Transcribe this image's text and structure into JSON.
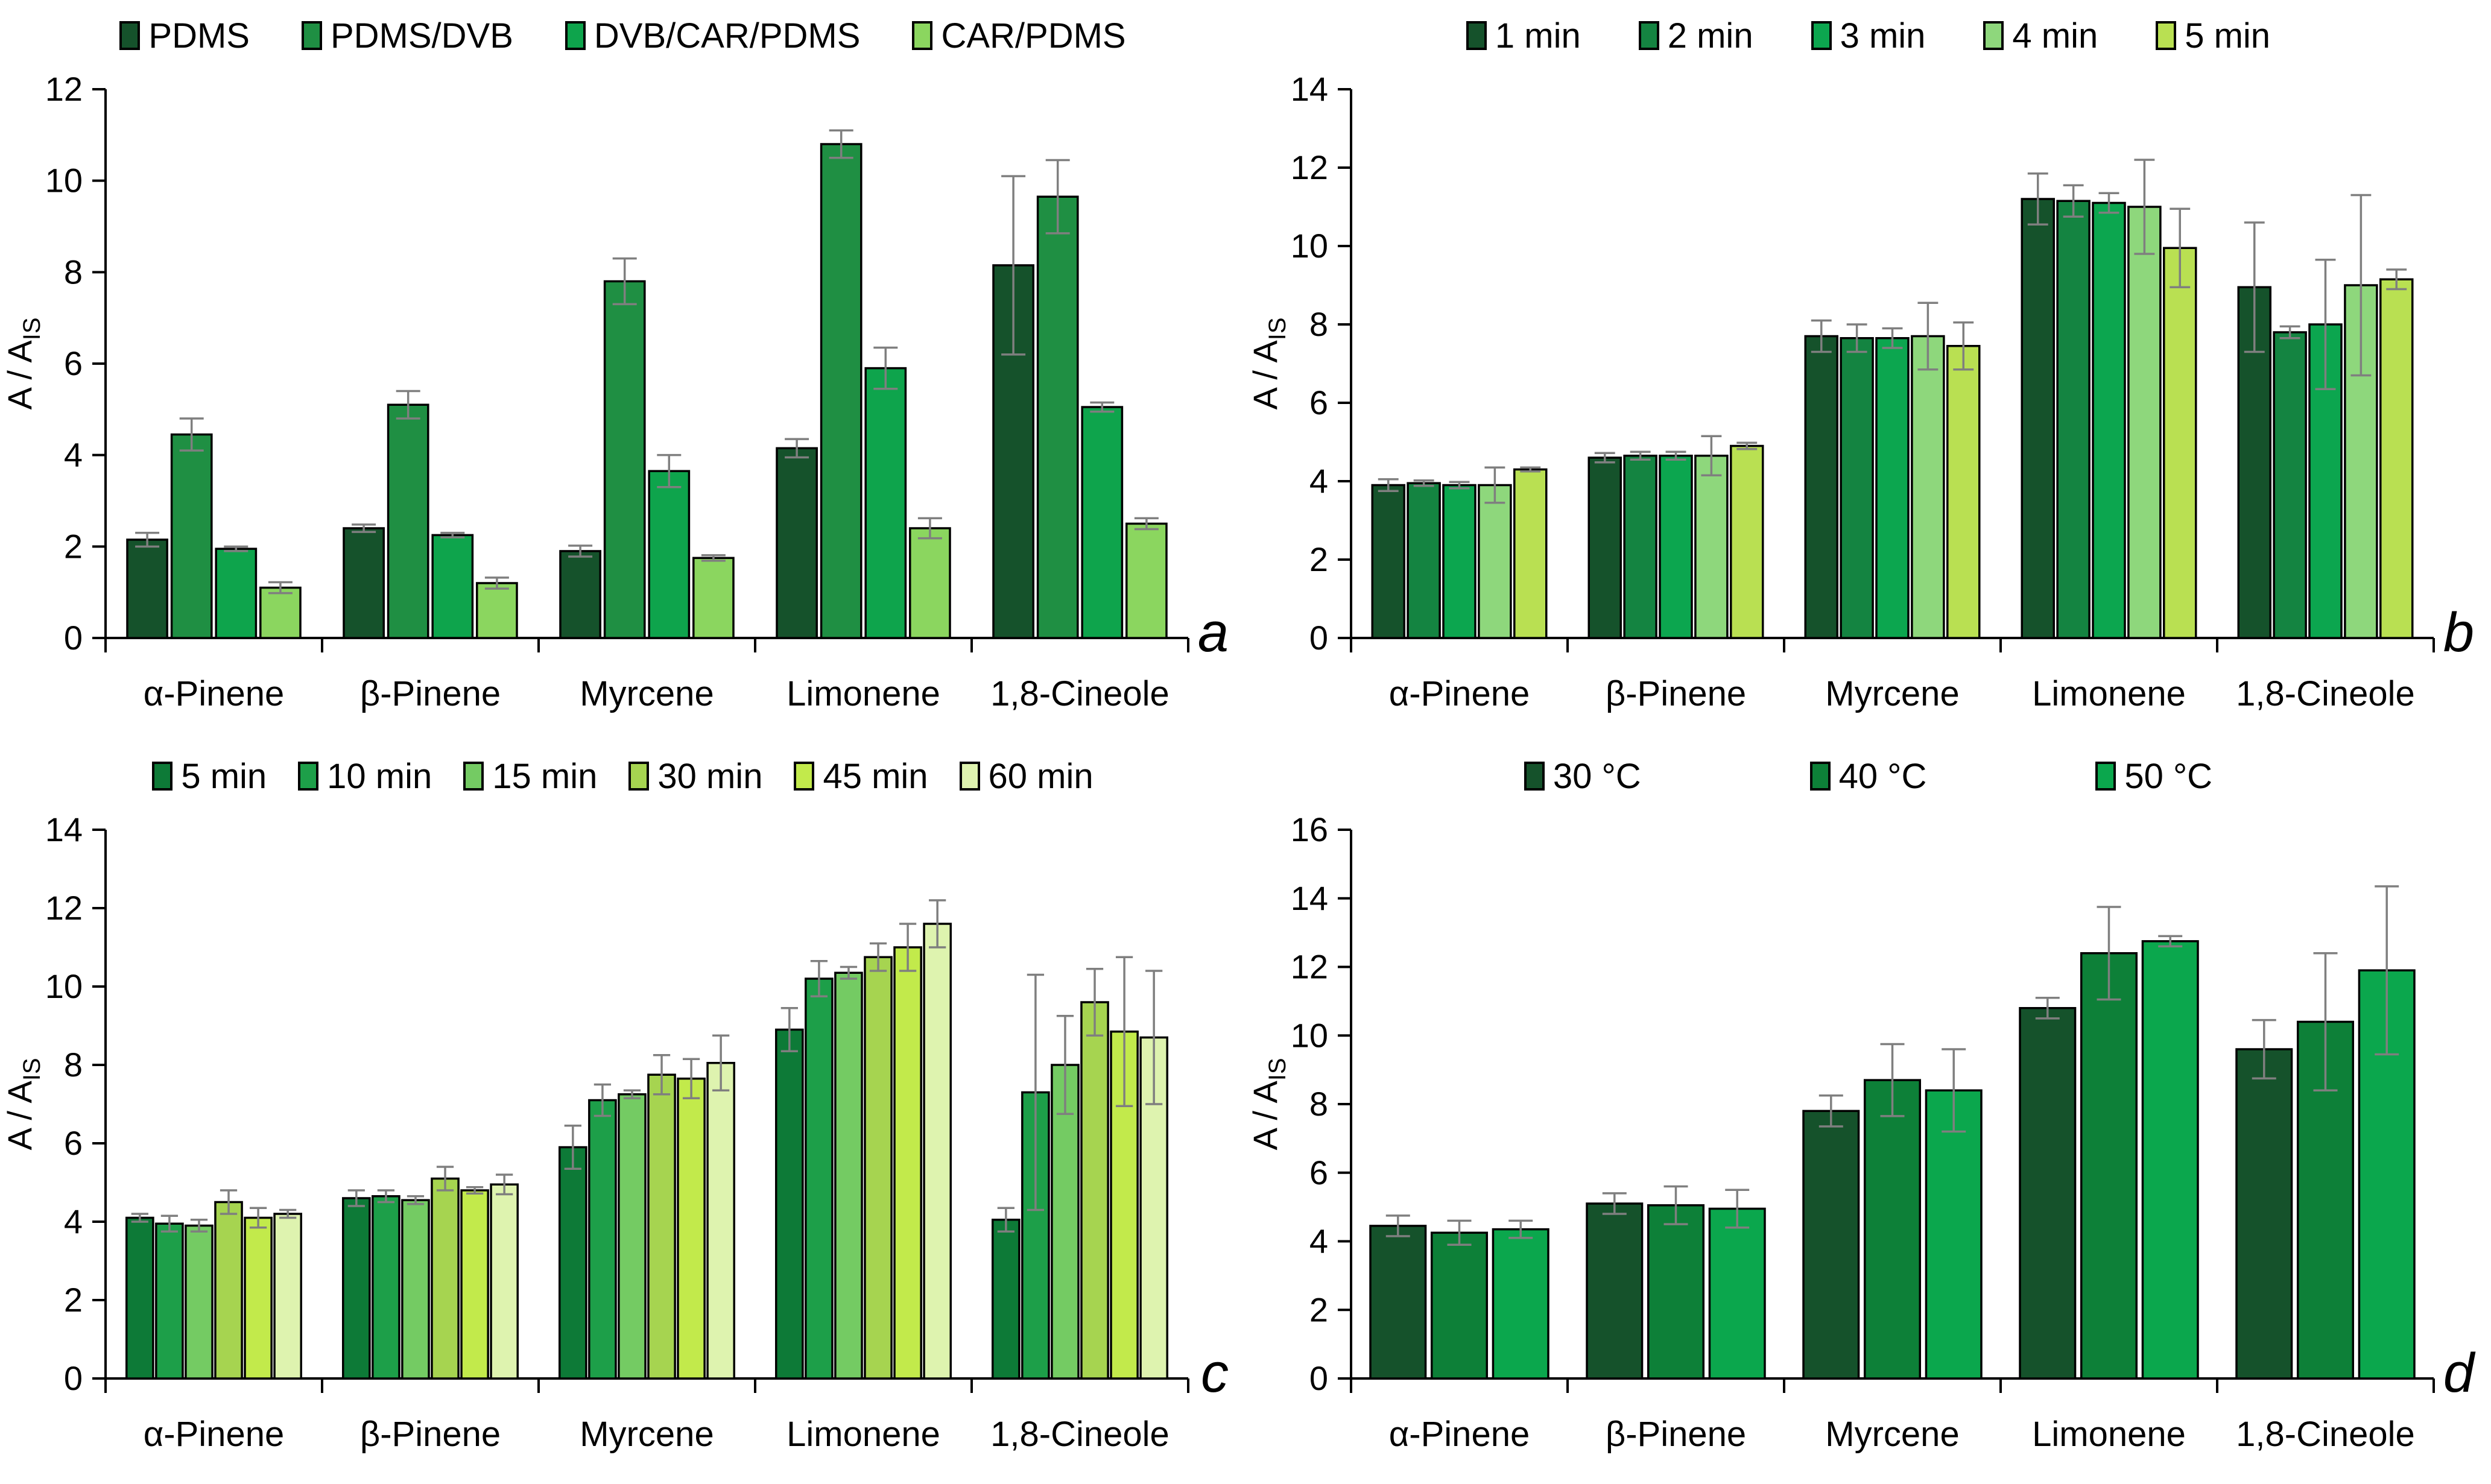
{
  "chart_data": [
    {
      "type": "bar",
      "panel_label": "a",
      "ylabel": "A / A",
      "ylabel_sub": "IS",
      "ylim": [
        0,
        12
      ],
      "ytick_step": 2,
      "grid": false,
      "legend_position": "top",
      "error_bar_color": "#7f7f7f",
      "categories": [
        "α-Pinene",
        "β-Pinene",
        "Myrcene",
        "Limonene",
        "1,8-Cineole"
      ],
      "series": [
        {
          "name": "PDMS",
          "color": "#15522b",
          "values": [
            2.15,
            2.4,
            1.9,
            4.15,
            8.15
          ],
          "errors": [
            0.15,
            0.08,
            0.12,
            0.2,
            1.95
          ]
        },
        {
          "name": "PDMS/DVB",
          "color": "#1f8f43",
          "values": [
            4.45,
            5.1,
            7.8,
            10.8,
            9.65
          ],
          "errors": [
            0.35,
            0.3,
            0.5,
            0.3,
            0.8
          ]
        },
        {
          "name": "DVB/CAR/PDMS",
          "color": "#0ea44c",
          "values": [
            1.95,
            2.25,
            3.65,
            5.9,
            5.05
          ],
          "errors": [
            0.05,
            0.05,
            0.35,
            0.45,
            0.1
          ]
        },
        {
          "name": "CAR/PDMS",
          "color": "#8bd65f",
          "values": [
            1.1,
            1.2,
            1.75,
            2.4,
            2.5
          ],
          "errors": [
            0.12,
            0.12,
            0.06,
            0.22,
            0.12
          ]
        }
      ]
    },
    {
      "type": "bar",
      "panel_label": "b",
      "ylabel": "A / A",
      "ylabel_sub": "IS",
      "ylim": [
        0,
        14
      ],
      "ytick_step": 2,
      "grid": false,
      "legend_position": "top",
      "error_bar_color": "#7f7f7f",
      "categories": [
        "α-Pinene",
        "β-Pinene",
        "Myrcene",
        "Limonene",
        "1,8-Cineole"
      ],
      "series": [
        {
          "name": "1 min",
          "color": "#15522b",
          "values": [
            3.9,
            4.6,
            7.7,
            11.2,
            8.95
          ],
          "errors": [
            0.15,
            0.12,
            0.4,
            0.65,
            1.65
          ]
        },
        {
          "name": "2 min",
          "color": "#148441",
          "values": [
            3.95,
            4.65,
            7.65,
            11.15,
            7.8
          ],
          "errors": [
            0.07,
            0.1,
            0.35,
            0.4,
            0.15
          ]
        },
        {
          "name": "3 min",
          "color": "#0ca64f",
          "values": [
            3.9,
            4.65,
            7.65,
            11.1,
            8.0
          ],
          "errors": [
            0.08,
            0.1,
            0.25,
            0.25,
            1.65
          ]
        },
        {
          "name": "4 min",
          "color": "#8ed77c",
          "values": [
            3.9,
            4.65,
            7.7,
            11.0,
            9.0
          ],
          "errors": [
            0.45,
            0.5,
            0.85,
            1.2,
            2.3
          ]
        },
        {
          "name": "5 min",
          "color": "#b9e052",
          "values": [
            4.3,
            4.9,
            7.45,
            9.95,
            9.15
          ],
          "errors": [
            0.05,
            0.08,
            0.6,
            1.0,
            0.25
          ]
        }
      ]
    },
    {
      "type": "bar",
      "panel_label": "c",
      "ylabel": "A / A",
      "ylabel_sub": "IS",
      "ylim": [
        0,
        14
      ],
      "ytick_step": 2,
      "grid": false,
      "legend_position": "top",
      "error_bar_color": "#7f7f7f",
      "categories": [
        "α-Pinene",
        "β-Pinene",
        "Myrcene",
        "Limonene",
        "1,8-Cineole"
      ],
      "series": [
        {
          "name": "5 min",
          "color": "#0d7a37",
          "values": [
            4.1,
            4.6,
            5.9,
            8.9,
            4.05
          ],
          "errors": [
            0.1,
            0.2,
            0.55,
            0.55,
            0.3
          ]
        },
        {
          "name": "10 min",
          "color": "#1d9f49",
          "values": [
            3.95,
            4.65,
            7.1,
            10.2,
            7.3
          ],
          "errors": [
            0.2,
            0.15,
            0.4,
            0.45,
            3.0
          ]
        },
        {
          "name": "15 min",
          "color": "#74cb63",
          "values": [
            3.9,
            4.55,
            7.25,
            10.35,
            8.0
          ],
          "errors": [
            0.15,
            0.1,
            0.1,
            0.15,
            1.25
          ]
        },
        {
          "name": "30 min",
          "color": "#a6d450",
          "values": [
            4.5,
            5.1,
            7.75,
            10.75,
            9.6
          ],
          "errors": [
            0.3,
            0.3,
            0.5,
            0.35,
            0.85
          ]
        },
        {
          "name": "45 min",
          "color": "#c2ea4b",
          "values": [
            4.1,
            4.8,
            7.65,
            11.0,
            8.85
          ],
          "errors": [
            0.25,
            0.08,
            0.5,
            0.6,
            1.9
          ]
        },
        {
          "name": "60 min",
          "color": "#def3af",
          "values": [
            4.2,
            4.95,
            8.05,
            11.6,
            8.7
          ],
          "errors": [
            0.1,
            0.25,
            0.7,
            0.6,
            1.7
          ]
        }
      ]
    },
    {
      "type": "bar",
      "panel_label": "d",
      "ylabel": "A / A",
      "ylabel_sub": "IS",
      "ylim": [
        0,
        16
      ],
      "ytick_step": 2,
      "grid": false,
      "legend_position": "top",
      "error_bar_color": "#7f7f7f",
      "categories": [
        "α-Pinene",
        "β-Pinene",
        "Myrcene",
        "Limonene",
        "1,8-Cineole"
      ],
      "series": [
        {
          "name": "30 °C",
          "color": "#15522b",
          "values": [
            4.45,
            5.1,
            7.8,
            10.8,
            9.6
          ],
          "errors": [
            0.3,
            0.3,
            0.45,
            0.3,
            0.85
          ]
        },
        {
          "name": "40 °C",
          "color": "#0d8038",
          "values": [
            4.25,
            5.05,
            8.7,
            12.4,
            10.4
          ],
          "errors": [
            0.35,
            0.55,
            1.05,
            1.35,
            2.0
          ]
        },
        {
          "name": "50 °C",
          "color": "#0ba74d",
          "values": [
            4.35,
            4.95,
            8.4,
            12.75,
            11.9
          ],
          "errors": [
            0.25,
            0.55,
            1.2,
            0.15,
            2.45
          ]
        }
      ]
    }
  ]
}
